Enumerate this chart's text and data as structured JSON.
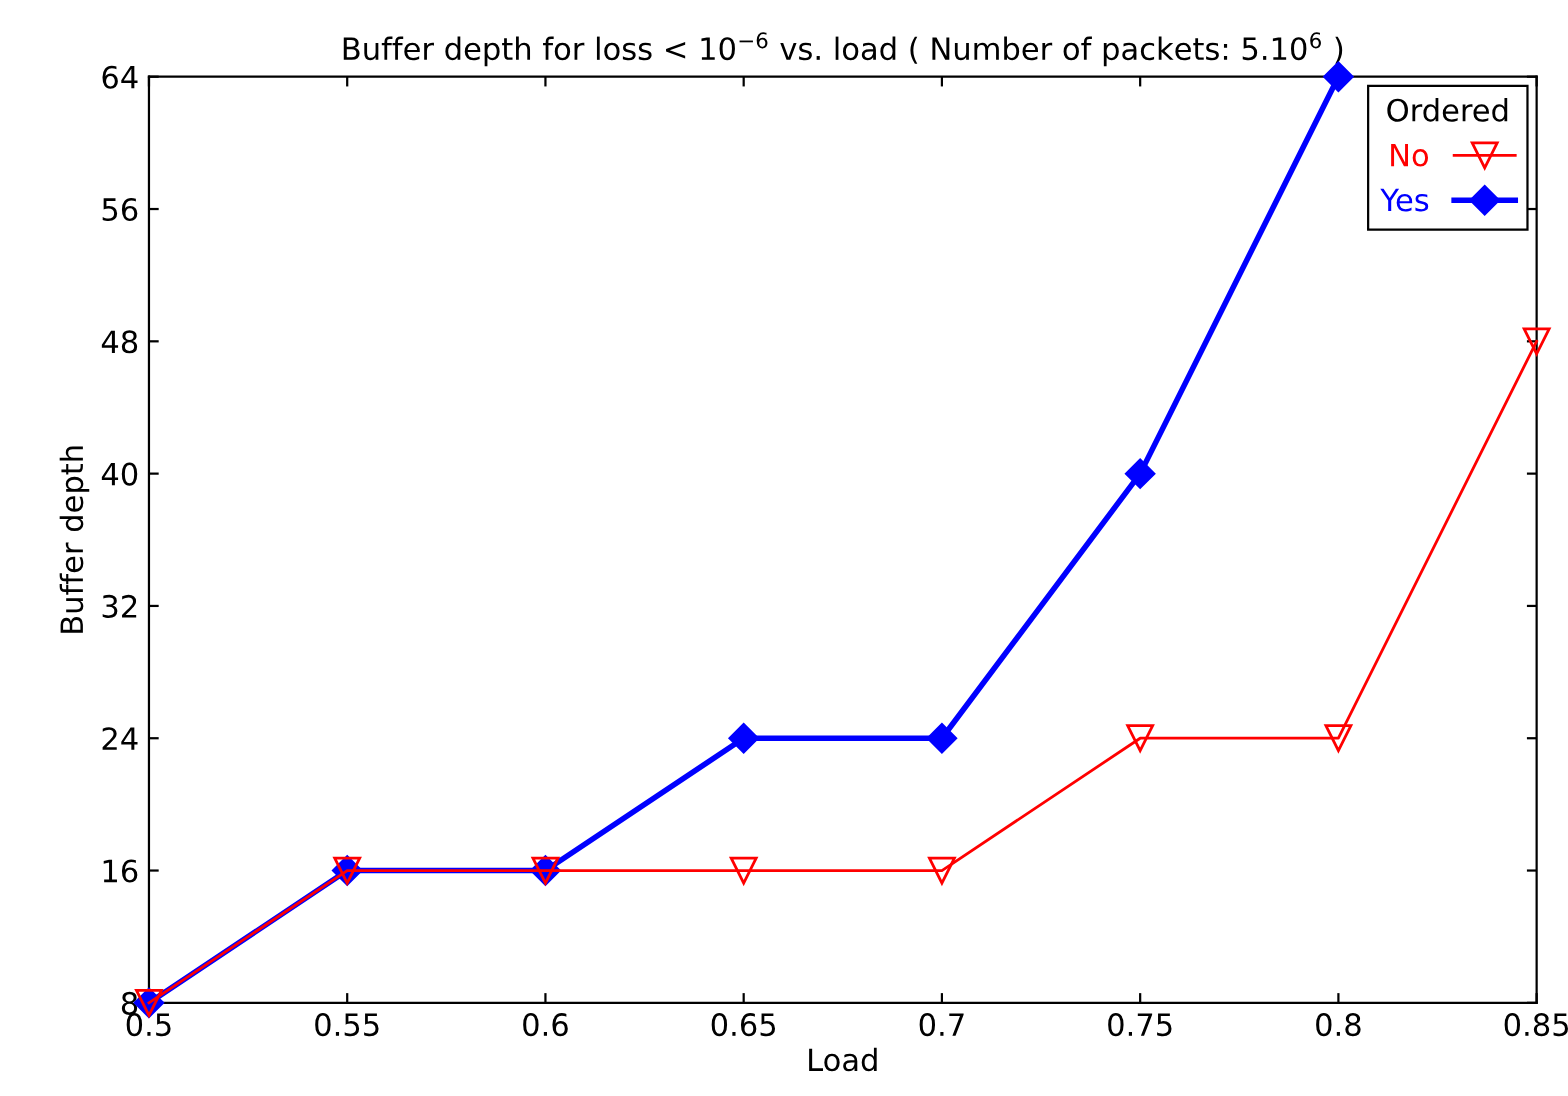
{
  "chart_data": {
    "type": "line",
    "title": "Buffer depth for loss < 10$^{−6}$ vs. load ( Number of packets: 5.10$^{6}$ )",
    "xlabel": "Load",
    "ylabel": "Buffer depth",
    "legend_title": "Ordered",
    "legend": "top right",
    "grid": false,
    "xlim": [
      0.5,
      0.85
    ],
    "xticks": [
      0.5,
      0.55,
      0.6,
      0.65,
      0.7,
      0.75,
      0.8,
      0.85
    ],
    "ylim": [
      8,
      64
    ],
    "yticks": [
      8,
      16,
      24,
      32,
      40,
      48,
      56,
      64
    ],
    "series": [
      {
        "name": "No",
        "color": "#ff0000",
        "marker": "triangle",
        "x": [
          0.5,
          0.55,
          0.6,
          0.65,
          0.7,
          0.75,
          0.8,
          0.85
        ],
        "values": [
          8,
          16,
          16,
          16,
          16,
          24,
          24,
          48
        ]
      },
      {
        "name": "Yes",
        "color": "#0000ff",
        "marker": "diamond",
        "x": [
          0.5,
          0.55,
          0.6,
          0.65,
          0.7,
          0.75,
          0.8
        ],
        "values": [
          8,
          16,
          16,
          24,
          24,
          40,
          64
        ]
      }
    ]
  }
}
